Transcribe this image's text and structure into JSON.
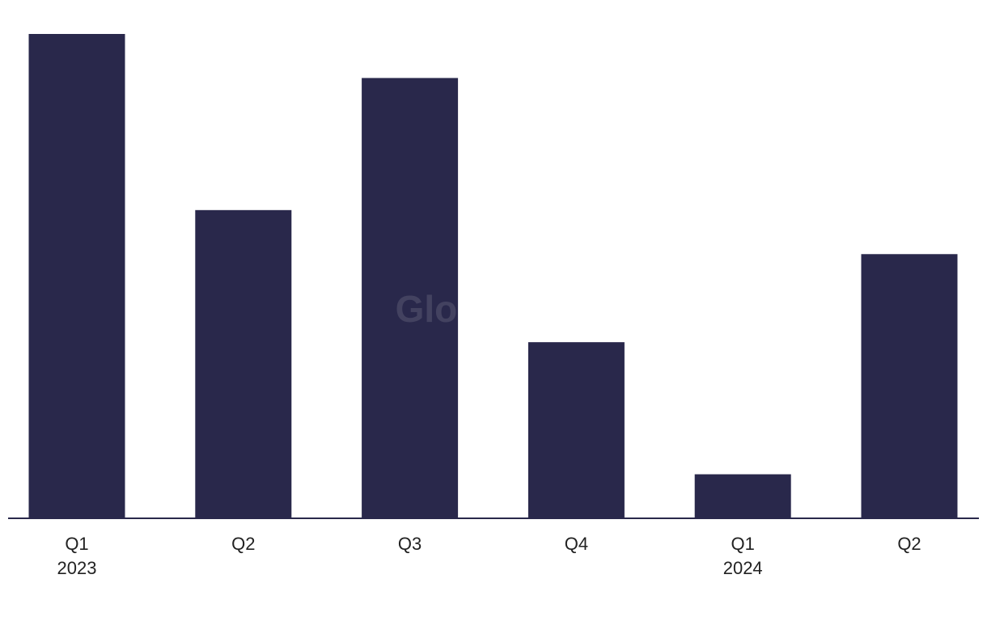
{
  "chart_data": {
    "type": "bar",
    "categories": [
      "Q1",
      "Q2",
      "Q3",
      "Q4",
      "Q1",
      "Q2"
    ],
    "year_labels": [
      "2023",
      null,
      null,
      null,
      "2024",
      null
    ],
    "values": [
      11,
      7,
      10,
      4,
      1,
      6
    ],
    "color": "#29284b",
    "ylim": [
      0,
      11
    ],
    "watermark": "GlobalData"
  }
}
